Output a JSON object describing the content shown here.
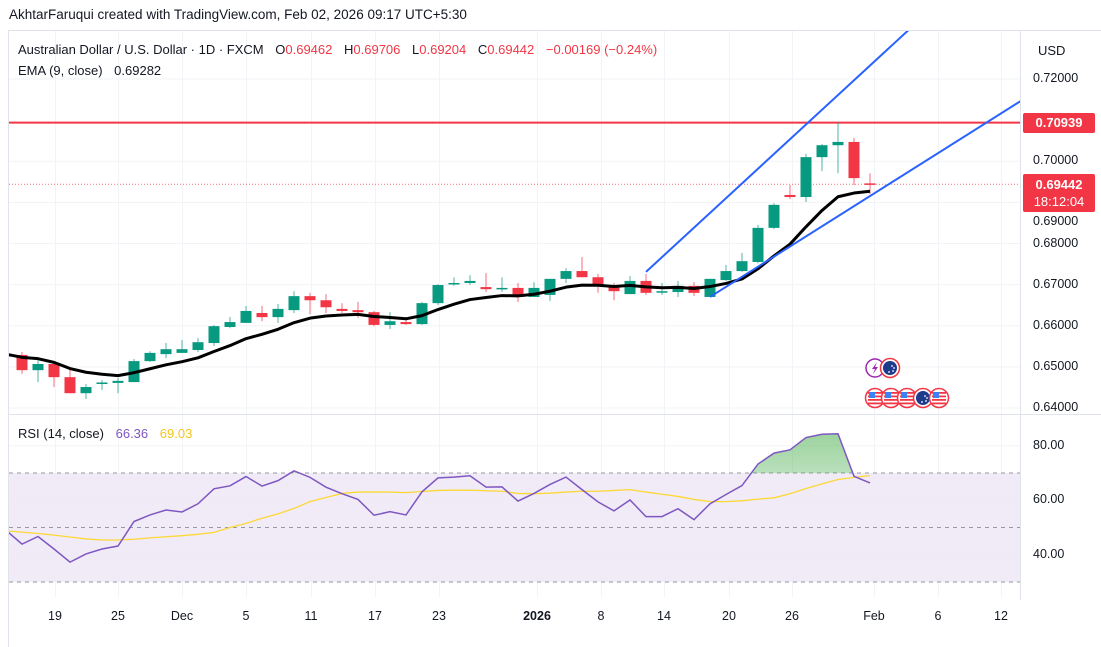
{
  "credit": "AkhtarFaruqui created with TradingView.com, Feb 02, 2026 09:17 UTC+5:30",
  "legend": {
    "symbol": "Australian Dollar / U.S. Dollar · 1D · FXCM",
    "open_label": "O",
    "open": "0.69462",
    "high_label": "H",
    "high": "0.69706",
    "low_label": "L",
    "low": "0.69204",
    "close_label": "C",
    "close": "0.69442",
    "change": "−0.00169 (−0.24%)",
    "ema_label": "EMA (9, close)",
    "ema_value": "0.69282"
  },
  "currency": "USD",
  "price_axis": [
    "0.72000",
    "0.70000",
    "0.69000",
    "0.68000",
    "0.67000",
    "0.66000",
    "0.65000",
    "0.64000"
  ],
  "price_axis_values": [
    0.72,
    0.7,
    0.69,
    0.68,
    0.67,
    0.66,
    0.65,
    0.64
  ],
  "horizontal_line": {
    "price": 0.70939,
    "label": "0.70939"
  },
  "last_price": {
    "label": "0.69442",
    "countdown": "18:12:04"
  },
  "rsi": {
    "label": "RSI (14, close)",
    "value": "66.36",
    "signal": "69.03",
    "axis": [
      "80.00",
      "60.00",
      "40.00"
    ],
    "axis_values": [
      80,
      60,
      40
    ],
    "bands": [
      70,
      50,
      30
    ],
    "values": [
      49.0,
      43.9,
      46.7,
      42.1,
      37.3,
      40.3,
      42.1,
      43.2,
      52.2,
      54.6,
      56.4,
      55.7,
      58.7,
      64.2,
      65.3,
      68.7,
      65.2,
      67.2,
      70.8,
      68.4,
      64.8,
      62.4,
      60.3,
      54.5,
      55.8,
      54.6,
      63.1,
      68.2,
      68.5,
      69.0,
      64.8,
      64.9,
      59.7,
      62.5,
      65.8,
      68.5,
      63.9,
      59.4,
      56.1,
      60.1,
      54.0,
      54.0,
      56.9,
      52.9,
      58.7,
      62.1,
      65.4,
      73.3,
      77.3,
      78.5,
      83.0,
      84.2,
      84.4,
      68.8,
      66.36
    ],
    "signal_values": [
      48.8,
      48.3,
      47.8,
      47.2,
      46.5,
      45.8,
      45.4,
      45.4,
      45.7,
      46.2,
      46.6,
      47.0,
      47.5,
      48.2,
      50.0,
      51.5,
      53.4,
      55.0,
      57.0,
      59.5,
      61.0,
      62.5,
      63.0,
      63.0,
      63.0,
      62.8,
      63.2,
      63.6,
      63.7,
      63.7,
      63.5,
      63.3,
      62.5,
      62.4,
      62.6,
      63.0,
      63.3,
      63.3,
      63.6,
      63.9,
      63.0,
      62.2,
      61.4,
      60.3,
      59.5,
      59.5,
      59.8,
      60.4,
      60.9,
      62.4,
      64.3,
      66.0,
      67.6,
      68.4,
      69.03
    ]
  },
  "x_axis": [
    "19",
    "25",
    "Dec",
    "5",
    "11",
    "17",
    "23",
    "2026",
    "8",
    "14",
    "20",
    "26",
    "Feb",
    "6",
    "12"
  ],
  "colors": {
    "up": "#089981",
    "down": "#f23645",
    "ema": "#000000",
    "trendline": "#2962ff",
    "rsi": "#7e57c2",
    "signal": "#fdd835",
    "rsi_band_fill": "#ede7f6",
    "overbought_fill": "#4caf50"
  },
  "event_icons": [
    "lightning-event-icon",
    "au-flag-icon",
    "us-flag-icon",
    "us-flag-icon",
    "us-flag-icon",
    "au-flag-icon",
    "us-flag-icon"
  ],
  "chart_data": {
    "type": "candlestick",
    "interval": "1D",
    "ema_period": 9,
    "ohlc": [
      [
        0.6525,
        0.6535,
        0.652,
        0.6531
      ],
      [
        0.6529,
        0.6536,
        0.6483,
        0.6492
      ],
      [
        0.6492,
        0.6517,
        0.6463,
        0.6507
      ],
      [
        0.6507,
        0.6509,
        0.6451,
        0.6475
      ],
      [
        0.6475,
        0.65,
        0.6436,
        0.6436
      ],
      [
        0.6436,
        0.6458,
        0.6422,
        0.6451
      ],
      [
        0.6461,
        0.6468,
        0.6444,
        0.6462
      ],
      [
        0.6461,
        0.6473,
        0.6436,
        0.6466
      ],
      [
        0.6463,
        0.6519,
        0.6463,
        0.6514
      ],
      [
        0.6514,
        0.6538,
        0.6512,
        0.6534
      ],
      [
        0.6531,
        0.6558,
        0.6521,
        0.6543
      ],
      [
        0.6534,
        0.6565,
        0.6534,
        0.6543
      ],
      [
        0.6541,
        0.657,
        0.6536,
        0.656
      ],
      [
        0.6558,
        0.6602,
        0.6551,
        0.6599
      ],
      [
        0.6597,
        0.6621,
        0.6594,
        0.6609
      ],
      [
        0.6607,
        0.6648,
        0.6607,
        0.6636
      ],
      [
        0.6631,
        0.6648,
        0.6611,
        0.6621
      ],
      [
        0.6621,
        0.6653,
        0.6607,
        0.6641
      ],
      [
        0.6638,
        0.6684,
        0.6631,
        0.6672
      ],
      [
        0.6672,
        0.668,
        0.6628,
        0.6662
      ],
      [
        0.6662,
        0.6677,
        0.6631,
        0.6645
      ],
      [
        0.6641,
        0.6655,
        0.6631,
        0.6636
      ],
      [
        0.6638,
        0.6658,
        0.6619,
        0.6633
      ],
      [
        0.6633,
        0.6636,
        0.6599,
        0.6602
      ],
      [
        0.6602,
        0.6633,
        0.6592,
        0.6611
      ],
      [
        0.6609,
        0.6621,
        0.6602,
        0.6604
      ],
      [
        0.6604,
        0.6658,
        0.6602,
        0.6655
      ],
      [
        0.6655,
        0.6701,
        0.665,
        0.6699
      ],
      [
        0.6701,
        0.6718,
        0.6697,
        0.6704
      ],
      [
        0.6704,
        0.6723,
        0.6699,
        0.6709
      ],
      [
        0.6694,
        0.6728,
        0.6682,
        0.6689
      ],
      [
        0.6689,
        0.6718,
        0.6682,
        0.6692
      ],
      [
        0.6692,
        0.6704,
        0.6658,
        0.667
      ],
      [
        0.667,
        0.6706,
        0.667,
        0.6692
      ],
      [
        0.6675,
        0.6711,
        0.666,
        0.6714
      ],
      [
        0.6714,
        0.674,
        0.6704,
        0.6733
      ],
      [
        0.6733,
        0.6767,
        0.6718,
        0.6718
      ],
      [
        0.6718,
        0.6726,
        0.668,
        0.6697
      ],
      [
        0.6697,
        0.6704,
        0.6662,
        0.6684
      ],
      [
        0.6677,
        0.6721,
        0.6677,
        0.6709
      ],
      [
        0.6709,
        0.6726,
        0.6675,
        0.668
      ],
      [
        0.6682,
        0.6704,
        0.6675,
        0.6684
      ],
      [
        0.6682,
        0.6709,
        0.667,
        0.6697
      ],
      [
        0.6697,
        0.6706,
        0.6672,
        0.668
      ],
      [
        0.667,
        0.6714,
        0.667,
        0.6714
      ],
      [
        0.6711,
        0.6748,
        0.6709,
        0.6733
      ],
      [
        0.6733,
        0.6777,
        0.6731,
        0.6757
      ],
      [
        0.6755,
        0.6845,
        0.6752,
        0.6838
      ],
      [
        0.6838,
        0.6898,
        0.6835,
        0.6894
      ],
      [
        0.6918,
        0.6942,
        0.6908,
        0.6913
      ],
      [
        0.6913,
        0.7018,
        0.6901,
        0.701
      ],
      [
        0.701,
        0.7042,
        0.6976,
        0.7039
      ],
      [
        0.7039,
        0.7095,
        0.6971,
        0.7047
      ],
      [
        0.7047,
        0.7057,
        0.6942,
        0.6959
      ],
      [
        0.69462,
        0.69706,
        0.69204,
        0.69442
      ]
    ],
    "trendlines": [
      {
        "from": {
          "bar": 40,
          "price": 0.6731
        },
        "to": {
          "bar": 58.25,
          "price": 0.7385
        }
      },
      {
        "from": {
          "bar": 44,
          "price": 0.667
        },
        "to": {
          "bar": 63.4,
          "price": 0.7146
        }
      }
    ],
    "ylim": [
      0.636,
      0.733
    ],
    "rsi_ylim": [
      25,
      92
    ]
  }
}
